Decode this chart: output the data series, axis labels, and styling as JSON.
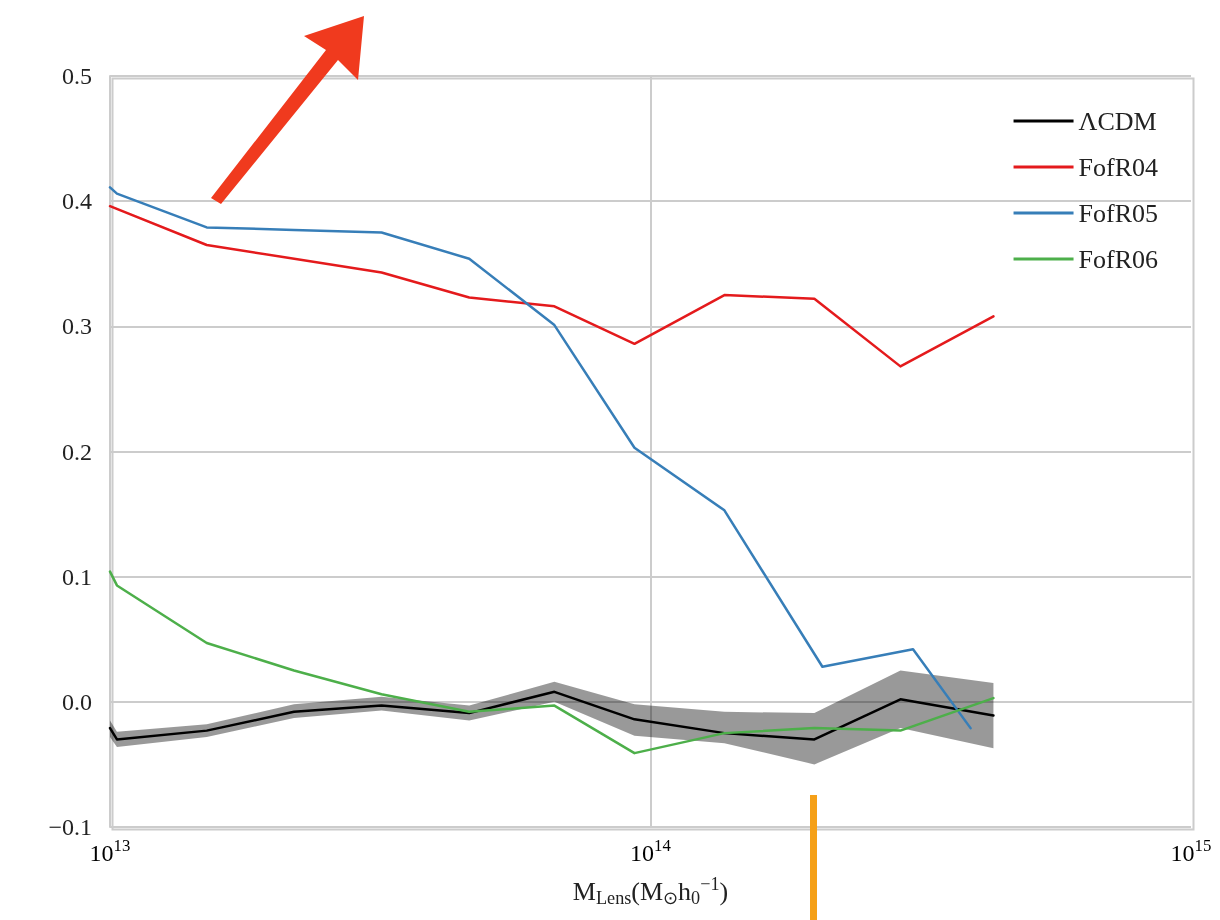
{
  "chart_data": {
    "type": "line",
    "xlabel": "M$_{Lens}$(M$_{⊙}$h$_{0}$$^{−1}$)",
    "log": "x",
    "grid": true,
    "legend": "top right",
    "marker": "none",
    "line_style": "solid",
    "xlim": [
      10000000000000.0,
      1000000000000000.0
    ],
    "xticks": [
      {
        "value": 10000000000000.0,
        "label": "10$^{13}$"
      },
      {
        "value": 100000000000000.0,
        "label": "10$^{14}$"
      },
      {
        "value": 1000000000000000.0,
        "label": "10$^{15}$"
      }
    ],
    "ylim": [
      -0.1,
      0.5
    ],
    "yticks": [
      {
        "value": -0.1,
        "label": "−0.1"
      },
      {
        "value": 0,
        "label": "0.0"
      },
      {
        "value": 0.1,
        "label": "0.1"
      },
      {
        "value": 0.2,
        "label": "0.2"
      },
      {
        "value": 0.3,
        "label": "0.3"
      },
      {
        "value": 0.4,
        "label": "0.4"
      },
      {
        "value": 0.5,
        "label": "0.5"
      }
    ],
    "series": [
      {
        "name": "ΛCDM",
        "color": "#000000",
        "x": [
          10000000000000.0,
          10300000000000.0,
          15100000000000.0,
          21900000000000.0,
          31800000000000.0,
          46200000000000.0,
          66400000000000.0,
          93400000000000.0,
          137000000000000.0,
          201000000000000.0,
          290000000000000.0,
          431000000000000.0
        ],
        "values": [
          -0.021,
          -0.03,
          -0.023,
          -0.008,
          -0.003,
          -0.009,
          0.008,
          -0.014,
          -0.025,
          -0.03,
          0.002,
          -0.011
        ],
        "lower": [
          -0.028,
          -0.036,
          -0.028,
          -0.013,
          -0.007,
          -0.015,
          0.0,
          -0.027,
          -0.033,
          -0.05,
          -0.021,
          -0.037
        ],
        "upper": [
          -0.015,
          -0.024,
          -0.018,
          -0.002,
          0.004,
          -0.003,
          0.016,
          -0.002,
          -0.008,
          -0.009,
          0.025,
          0.015
        ]
      },
      {
        "name": "FofR04",
        "color": "#e41a1c",
        "x": [
          10000000000000.0,
          15100000000000.0,
          31800000000000.0,
          46200000000000.0,
          66400000000000.0,
          93400000000000.0,
          137000000000000.0,
          201000000000000.0,
          290000000000000.0,
          431000000000000.0
        ],
        "values": [
          0.396,
          0.365,
          0.343,
          0.323,
          0.316,
          0.286,
          0.325,
          0.322,
          0.268,
          0.308
        ]
      },
      {
        "name": "FofR05",
        "color": "#377eb8",
        "x": [
          10000000000000.0,
          10300000000000.0,
          15100000000000.0,
          21900000000000.0,
          31800000000000.0,
          46200000000000.0,
          66400000000000.0,
          93400000000000.0,
          137000000000000.0,
          208000000000000.0,
          306000000000000.0,
          391000000000000.0
        ],
        "values": [
          0.411,
          0.406,
          0.379,
          0.377,
          0.375,
          0.354,
          0.301,
          0.203,
          0.153,
          0.028,
          0.042,
          -0.021
        ]
      },
      {
        "name": "FofR06",
        "color": "#4daf4a",
        "x": [
          10000000000000.0,
          10300000000000.0,
          15100000000000.0,
          21900000000000.0,
          31800000000000.0,
          46200000000000.0,
          66400000000000.0,
          93400000000000.0,
          137000000000000.0,
          201000000000000.0,
          290000000000000.0,
          431000000000000.0
        ],
        "values": [
          0.104,
          0.093,
          0.047,
          0.025,
          0.006,
          -0.008,
          -0.003,
          -0.041,
          -0.025,
          -0.021,
          -0.023,
          0.003
        ]
      }
    ]
  }
}
